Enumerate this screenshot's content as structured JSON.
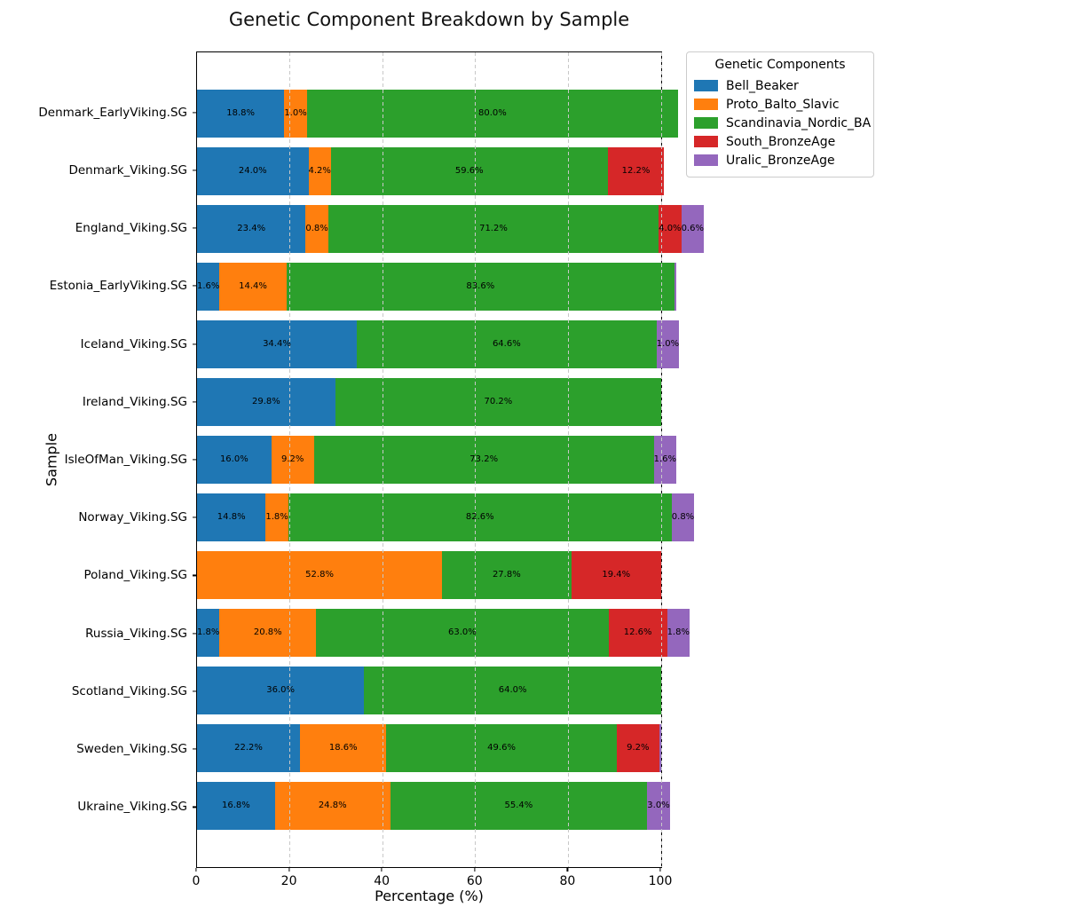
{
  "figure": {
    "title": "Genetic Component Breakdown by Sample"
  },
  "chart_data": {
    "type": "bar",
    "orientation": "horizontal",
    "stacked": true,
    "title": "Genetic Component Breakdown by Sample",
    "xlabel": "Percentage (%)",
    "ylabel": "Sample",
    "xlim": [
      0,
      100
    ],
    "x_ticks": [
      0,
      20,
      40,
      60,
      80,
      100
    ],
    "grid": "vertical dashed gridlines, light gray, drawn above bars",
    "legend_title": "Genetic Components",
    "legend_position": "outside upper right",
    "bar_label_format": "one decimal + %",
    "bar_label_min_value": 0.5,
    "categories": [
      "Denmark_EarlyViking.SG",
      "Denmark_Viking.SG",
      "England_Viking.SG",
      "Estonia_EarlyViking.SG",
      "Iceland_Viking.SG",
      "Ireland_Viking.SG",
      "IsleOfMan_Viking.SG",
      "Norway_Viking.SG",
      "Poland_Viking.SG",
      "Russia_Viking.SG",
      "Scotland_Viking.SG",
      "Sweden_Viking.SG",
      "Ukraine_Viking.SG"
    ],
    "series": [
      {
        "name": "Bell_Beaker",
        "color": "#1f77b4",
        "values": [
          18.8,
          24.0,
          23.4,
          1.6,
          34.4,
          29.8,
          16.0,
          14.8,
          0,
          1.8,
          36.0,
          22.2,
          16.8
        ]
      },
      {
        "name": "Proto_Balto_Slavic",
        "color": "#ff7f0e",
        "values": [
          1.0,
          4.2,
          0.8,
          14.4,
          0,
          0,
          9.2,
          1.8,
          52.8,
          20.8,
          0,
          18.6,
          24.8
        ]
      },
      {
        "name": "Scandinavia_Nordic_BA",
        "color": "#2ca02c",
        "values": [
          80.0,
          59.6,
          71.2,
          83.6,
          64.6,
          70.2,
          73.2,
          82.6,
          27.8,
          63.0,
          64.0,
          49.6,
          55.4
        ]
      },
      {
        "name": "South_BronzeAge",
        "color": "#d62728",
        "values": [
          0,
          12.2,
          4.0,
          0,
          0,
          0,
          0,
          0,
          19.4,
          12.6,
          0,
          9.2,
          0
        ]
      },
      {
        "name": "Uralic_BronzeAge",
        "color": "#9467bd",
        "values": [
          0,
          0,
          0.6,
          0.4,
          1.0,
          0,
          1.6,
          0.8,
          0,
          1.8,
          0,
          0.4,
          3.0
        ]
      }
    ]
  }
}
